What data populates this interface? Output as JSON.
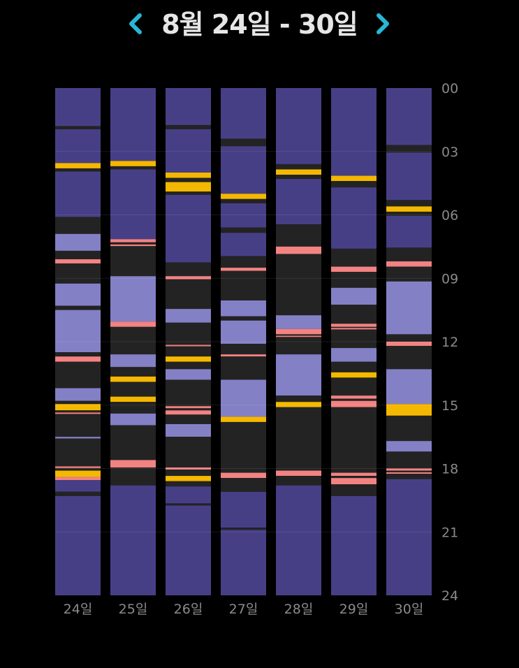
{
  "header": {
    "title": "8월 24일 - 30일",
    "prev_icon": "chevron-left-icon",
    "next_icon": "chevron-right-icon",
    "accent": "#29b6d6"
  },
  "chart_data": {
    "type": "stacked-bar-timeline",
    "categories": [
      "24일",
      "25일",
      "26일",
      "27일",
      "28일",
      "29일",
      "30일"
    ],
    "y_ticks": [
      "00",
      "03",
      "06",
      "09",
      "12",
      "15",
      "18",
      "21",
      "24"
    ],
    "ylim": [
      0,
      24
    ],
    "colors": {
      "deep": "#473f86",
      "light": "#8480c5",
      "awake": "#232323",
      "gap": "#000000",
      "rem": "#f5b800",
      "wake": "#f38282"
    },
    "series": [
      {
        "category": "24일",
        "segments": [
          [
            0,
            1.8,
            "deep"
          ],
          [
            1.8,
            1.95,
            "awake"
          ],
          [
            1.95,
            3.55,
            "deep"
          ],
          [
            3.55,
            3.8,
            "rem"
          ],
          [
            3.8,
            3.95,
            "awake"
          ],
          [
            3.95,
            6.1,
            "deep"
          ],
          [
            6.1,
            6.9,
            "awake"
          ],
          [
            6.9,
            7.7,
            "light"
          ],
          [
            7.7,
            8.1,
            "awake"
          ],
          [
            8.1,
            8.3,
            "wake"
          ],
          [
            8.3,
            9.25,
            "awake"
          ],
          [
            9.25,
            10.3,
            "light"
          ],
          [
            10.3,
            10.5,
            "awake"
          ],
          [
            10.5,
            12.5,
            "light"
          ],
          [
            12.5,
            12.7,
            "awake"
          ],
          [
            12.7,
            12.95,
            "wake"
          ],
          [
            12.95,
            14.2,
            "awake"
          ],
          [
            14.2,
            14.8,
            "light"
          ],
          [
            14.8,
            14.95,
            "awake"
          ],
          [
            14.95,
            15.25,
            "rem"
          ],
          [
            15.25,
            15.35,
            "awake"
          ],
          [
            15.35,
            15.42,
            "wake"
          ],
          [
            15.42,
            16.5,
            "awake"
          ],
          [
            16.5,
            16.58,
            "light"
          ],
          [
            16.58,
            17.9,
            "awake"
          ],
          [
            17.9,
            17.98,
            "wake"
          ],
          [
            17.98,
            18.1,
            "awake"
          ],
          [
            18.1,
            18.4,
            "rem"
          ],
          [
            18.4,
            18.55,
            "wake"
          ],
          [
            18.55,
            19.1,
            "deep"
          ],
          [
            19.1,
            19.3,
            "awake"
          ],
          [
            19.3,
            24,
            "deep"
          ]
        ]
      },
      {
        "category": "25일",
        "segments": [
          [
            0,
            3.45,
            "deep"
          ],
          [
            3.45,
            3.7,
            "rem"
          ],
          [
            3.7,
            3.85,
            "awake"
          ],
          [
            3.85,
            7.15,
            "deep"
          ],
          [
            7.15,
            7.3,
            "wake"
          ],
          [
            7.3,
            7.4,
            "awake"
          ],
          [
            7.4,
            7.48,
            "wake"
          ],
          [
            7.48,
            8.9,
            "awake"
          ],
          [
            8.9,
            11.05,
            "light"
          ],
          [
            11.05,
            11.3,
            "wake"
          ],
          [
            11.3,
            12.6,
            "awake"
          ],
          [
            12.6,
            13.2,
            "light"
          ],
          [
            13.2,
            13.65,
            "awake"
          ],
          [
            13.65,
            13.9,
            "rem"
          ],
          [
            13.9,
            14.6,
            "awake"
          ],
          [
            14.6,
            14.85,
            "rem"
          ],
          [
            14.85,
            15.4,
            "awake"
          ],
          [
            15.4,
            15.95,
            "light"
          ],
          [
            15.95,
            17.6,
            "awake"
          ],
          [
            17.6,
            17.95,
            "wake"
          ],
          [
            17.95,
            18.8,
            "awake"
          ],
          [
            18.8,
            24,
            "deep"
          ]
        ]
      },
      {
        "category": "26일",
        "segments": [
          [
            0,
            1.75,
            "deep"
          ],
          [
            1.75,
            1.95,
            "awake"
          ],
          [
            1.95,
            4.0,
            "deep"
          ],
          [
            4.0,
            4.25,
            "rem"
          ],
          [
            4.25,
            4.45,
            "awake"
          ],
          [
            4.45,
            4.9,
            "rem"
          ],
          [
            4.9,
            5.05,
            "awake"
          ],
          [
            5.05,
            8.25,
            "deep"
          ],
          [
            8.25,
            8.9,
            "awake"
          ],
          [
            8.9,
            9.05,
            "wake"
          ],
          [
            9.05,
            10.45,
            "awake"
          ],
          [
            10.45,
            11.1,
            "light"
          ],
          [
            11.1,
            12.15,
            "awake"
          ],
          [
            12.15,
            12.22,
            "wake"
          ],
          [
            12.22,
            12.7,
            "awake"
          ],
          [
            12.7,
            12.95,
            "rem"
          ],
          [
            12.95,
            13.3,
            "awake"
          ],
          [
            13.3,
            13.8,
            "light"
          ],
          [
            13.8,
            15.05,
            "awake"
          ],
          [
            15.05,
            15.15,
            "wake"
          ],
          [
            15.15,
            15.25,
            "awake"
          ],
          [
            15.25,
            15.45,
            "wake"
          ],
          [
            15.45,
            15.9,
            "awake"
          ],
          [
            15.9,
            16.5,
            "light"
          ],
          [
            16.5,
            17.95,
            "awake"
          ],
          [
            17.95,
            18.05,
            "wake"
          ],
          [
            18.05,
            18.35,
            "awake"
          ],
          [
            18.35,
            18.6,
            "rem"
          ],
          [
            18.6,
            18.85,
            "awake"
          ],
          [
            18.85,
            19.65,
            "deep"
          ],
          [
            19.65,
            19.75,
            "awake"
          ],
          [
            19.75,
            24,
            "deep"
          ]
        ]
      },
      {
        "category": "27일",
        "segments": [
          [
            0,
            2.4,
            "deep"
          ],
          [
            2.4,
            2.75,
            "awake"
          ],
          [
            2.75,
            5.0,
            "deep"
          ],
          [
            5.0,
            5.25,
            "rem"
          ],
          [
            5.25,
            5.45,
            "awake"
          ],
          [
            5.45,
            6.6,
            "deep"
          ],
          [
            6.6,
            6.85,
            "awake"
          ],
          [
            6.85,
            7.95,
            "deep"
          ],
          [
            7.95,
            8.5,
            "awake"
          ],
          [
            8.5,
            8.65,
            "wake"
          ],
          [
            8.65,
            10.05,
            "awake"
          ],
          [
            10.05,
            10.8,
            "light"
          ],
          [
            10.8,
            11.0,
            "awake"
          ],
          [
            11.0,
            12.1,
            "light"
          ],
          [
            12.1,
            12.6,
            "awake"
          ],
          [
            12.6,
            12.7,
            "wake"
          ],
          [
            12.7,
            13.8,
            "awake"
          ],
          [
            13.8,
            15.55,
            "light"
          ],
          [
            15.55,
            15.8,
            "rem"
          ],
          [
            15.8,
            18.2,
            "awake"
          ],
          [
            18.2,
            18.45,
            "wake"
          ],
          [
            18.45,
            19.1,
            "awake"
          ],
          [
            19.1,
            20.8,
            "deep"
          ],
          [
            20.8,
            20.9,
            "awake"
          ],
          [
            20.9,
            24,
            "deep"
          ]
        ]
      },
      {
        "category": "28일",
        "segments": [
          [
            0,
            3.6,
            "deep"
          ],
          [
            3.6,
            3.85,
            "awake"
          ],
          [
            3.85,
            4.1,
            "rem"
          ],
          [
            4.1,
            4.3,
            "awake"
          ],
          [
            4.3,
            6.45,
            "deep"
          ],
          [
            6.45,
            7.5,
            "awake"
          ],
          [
            7.5,
            7.85,
            "wake"
          ],
          [
            7.85,
            10.75,
            "awake"
          ],
          [
            10.75,
            11.4,
            "light"
          ],
          [
            11.4,
            11.65,
            "wake"
          ],
          [
            11.65,
            11.72,
            "awake"
          ],
          [
            11.72,
            11.78,
            "wake"
          ],
          [
            11.78,
            12.6,
            "awake"
          ],
          [
            12.6,
            14.55,
            "light"
          ],
          [
            14.55,
            14.85,
            "awake"
          ],
          [
            14.85,
            15.1,
            "rem"
          ],
          [
            15.1,
            18.1,
            "awake"
          ],
          [
            18.1,
            18.35,
            "wake"
          ],
          [
            18.35,
            18.8,
            "awake"
          ],
          [
            18.8,
            24,
            "deep"
          ]
        ]
      },
      {
        "category": "29일",
        "segments": [
          [
            0,
            4.15,
            "deep"
          ],
          [
            4.15,
            4.4,
            "rem"
          ],
          [
            4.4,
            4.7,
            "awake"
          ],
          [
            4.7,
            7.6,
            "deep"
          ],
          [
            7.6,
            8.45,
            "awake"
          ],
          [
            8.45,
            8.7,
            "wake"
          ],
          [
            8.7,
            9.45,
            "awake"
          ],
          [
            9.45,
            10.25,
            "light"
          ],
          [
            10.25,
            11.15,
            "awake"
          ],
          [
            11.15,
            11.3,
            "wake"
          ],
          [
            11.3,
            11.35,
            "awake"
          ],
          [
            11.35,
            11.42,
            "wake"
          ],
          [
            11.42,
            12.3,
            "awake"
          ],
          [
            12.3,
            12.95,
            "light"
          ],
          [
            12.95,
            13.45,
            "awake"
          ],
          [
            13.45,
            13.7,
            "rem"
          ],
          [
            13.7,
            14.55,
            "awake"
          ],
          [
            14.55,
            14.7,
            "wake"
          ],
          [
            14.7,
            14.8,
            "awake"
          ],
          [
            14.8,
            15.1,
            "wake"
          ],
          [
            15.1,
            18.2,
            "awake"
          ],
          [
            18.2,
            18.35,
            "wake"
          ],
          [
            18.35,
            18.45,
            "awake"
          ],
          [
            18.45,
            18.75,
            "wake"
          ],
          [
            18.75,
            19.3,
            "awake"
          ],
          [
            19.3,
            24,
            "deep"
          ]
        ]
      },
      {
        "category": "30일",
        "segments": [
          [
            0,
            2.7,
            "deep"
          ],
          [
            2.7,
            3.05,
            "awake"
          ],
          [
            3.05,
            5.3,
            "deep"
          ],
          [
            5.3,
            5.6,
            "awake"
          ],
          [
            5.6,
            5.85,
            "rem"
          ],
          [
            5.85,
            6.05,
            "awake"
          ],
          [
            6.05,
            7.55,
            "deep"
          ],
          [
            7.55,
            8.2,
            "awake"
          ],
          [
            8.2,
            8.45,
            "wake"
          ],
          [
            8.45,
            9.15,
            "awake"
          ],
          [
            9.15,
            11.65,
            "light"
          ],
          [
            11.65,
            12.0,
            "awake"
          ],
          [
            12.0,
            12.2,
            "wake"
          ],
          [
            12.2,
            13.3,
            "awake"
          ],
          [
            13.3,
            14.95,
            "light"
          ],
          [
            14.95,
            15.5,
            "rem"
          ],
          [
            15.5,
            16.7,
            "awake"
          ],
          [
            16.7,
            17.2,
            "light"
          ],
          [
            17.2,
            18.0,
            "awake"
          ],
          [
            18.0,
            18.1,
            "wake"
          ],
          [
            18.1,
            18.18,
            "awake"
          ],
          [
            18.18,
            18.25,
            "wake"
          ],
          [
            18.25,
            18.5,
            "awake"
          ],
          [
            18.5,
            24,
            "deep"
          ]
        ]
      }
    ]
  }
}
